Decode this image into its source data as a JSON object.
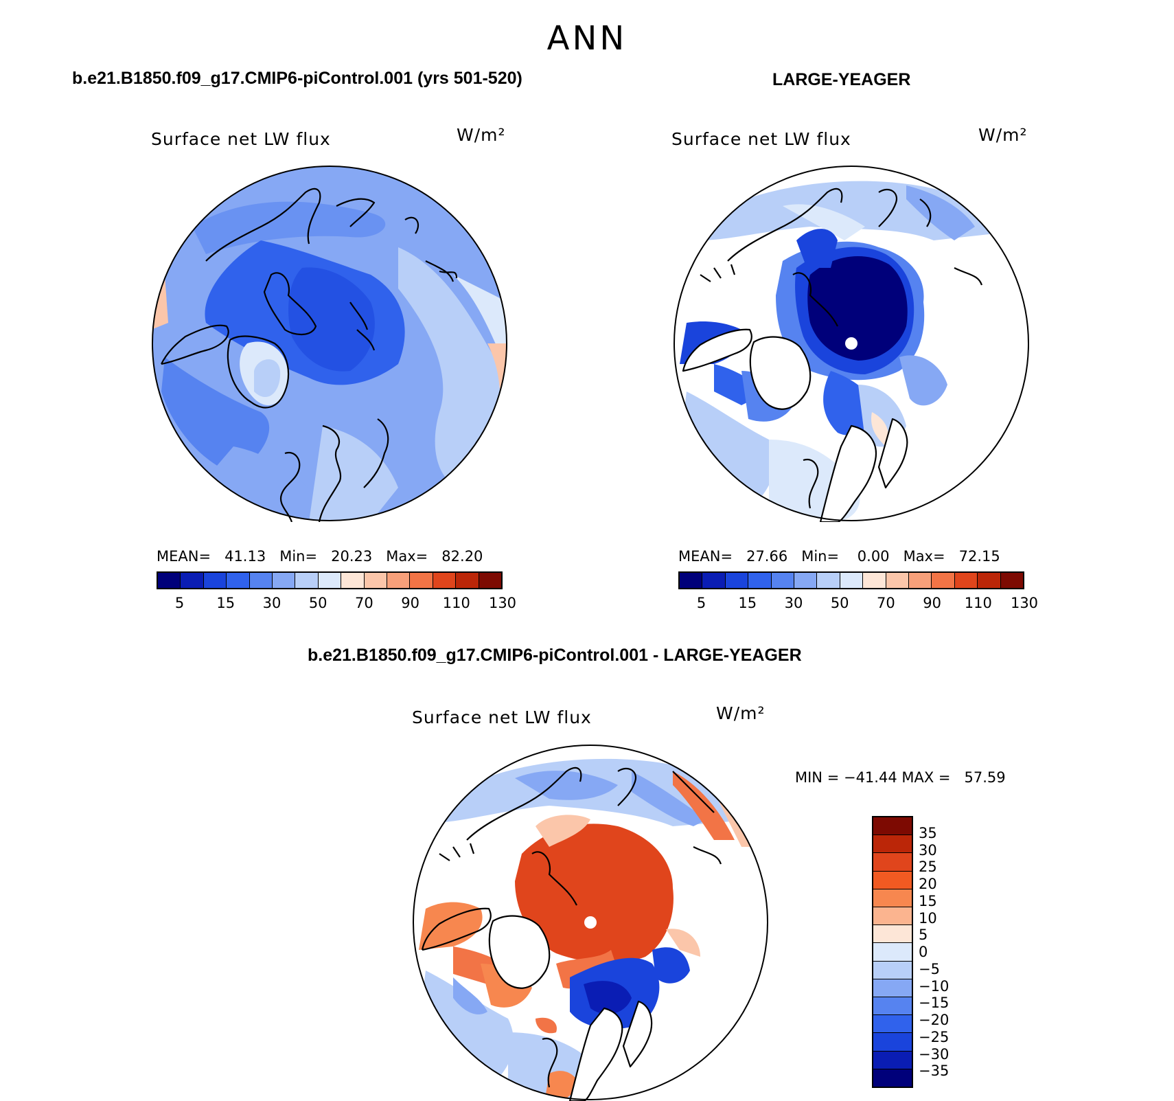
{
  "title": "ANN",
  "panels": [
    {
      "case": "b.e21.B1850.f09_g17.CMIP6-piControl.001 (yrs 501-520)",
      "variable": "Surface net LW flux",
      "units": "W/m²",
      "stats": "MEAN=   41.13   Min=   20.23   Max=   82.20",
      "ticks": [
        "5",
        "15",
        "30",
        "50",
        "70",
        "90",
        "110",
        "130"
      ]
    },
    {
      "case": "LARGE-YEAGER",
      "variable": "Surface net LW flux",
      "units": "W/m²",
      "stats": "MEAN=   27.66   Min=    0.00   Max=   72.15",
      "ticks": [
        "5",
        "15",
        "30",
        "50",
        "70",
        "90",
        "110",
        "130"
      ]
    },
    {
      "case": "b.e21.B1850.f09_g17.CMIP6-piControl.001 - LARGE-YEAGER",
      "variable": "Surface net LW flux",
      "units": "W/m²",
      "stats": "MIN = −41.44 MAX =   57.59",
      "ticks": [
        "35",
        "30",
        "25",
        "20",
        "15",
        "10",
        "5",
        "0",
        "−5",
        "−10",
        "−15",
        "−20",
        "−25",
        "−30",
        "−35"
      ]
    }
  ],
  "colors": {
    "abs_scale": [
      "#00007a",
      "#0a1db4",
      "#1a44dc",
      "#3062ec",
      "#5683f0",
      "#86a8f4",
      "#b8cff8",
      "#dce9fb",
      "#fde6d7",
      "#fbc6aa",
      "#f7a07a",
      "#f27446",
      "#e0451c",
      "#bb2608",
      "#7d0a02"
    ],
    "diff_scale": [
      "#7d0a02",
      "#bb2608",
      "#e0451c",
      "#f15a22",
      "#f7874f",
      "#fbb48f",
      "#fde6d7",
      "#dce9fb",
      "#b8cff8",
      "#86a8f4",
      "#5683f0",
      "#3062ec",
      "#1a44dc",
      "#0a1db4",
      "#00007a"
    ]
  }
}
